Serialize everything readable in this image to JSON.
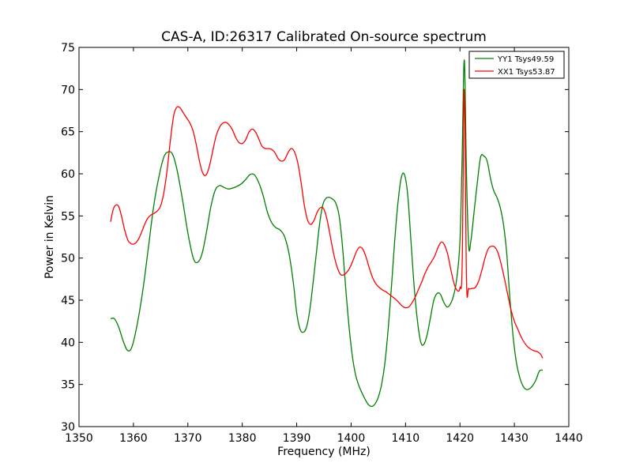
{
  "chart_data": {
    "type": "line",
    "title": "CAS-A, ID:26317 Calibrated On-source spectrum",
    "xlabel": "Frequency (MHz)",
    "ylabel": "Power in Kelvin",
    "xlim": [
      1350,
      1440
    ],
    "ylim": [
      30,
      75
    ],
    "xticks": [
      1350,
      1360,
      1370,
      1380,
      1390,
      1400,
      1410,
      1420,
      1430,
      1440
    ],
    "yticks": [
      30,
      35,
      40,
      45,
      50,
      55,
      60,
      65,
      70,
      75
    ],
    "grid": false,
    "legend_position": "top-right",
    "series": [
      {
        "name": "YY1 Tsys49.59",
        "color": "#008000",
        "x": [
          1355.8,
          1356.5,
          1357.3,
          1358.2,
          1359.0,
          1359.8,
          1360.8,
          1361.8,
          1362.8,
          1363.8,
          1364.8,
          1365.6,
          1366.4,
          1367.2,
          1368.0,
          1369.0,
          1370.0,
          1371.0,
          1371.8,
          1372.6,
          1373.4,
          1374.2,
          1375.0,
          1375.8,
          1376.6,
          1377.4,
          1378.2,
          1379.0,
          1379.8,
          1380.6,
          1381.4,
          1382.2,
          1383.0,
          1383.8,
          1384.6,
          1385.4,
          1386.2,
          1387.0,
          1387.8,
          1388.6,
          1389.4,
          1390.0,
          1390.6,
          1391.2,
          1391.8,
          1392.4,
          1393.0,
          1393.6,
          1394.2,
          1394.8,
          1395.4,
          1396.0,
          1396.6,
          1397.2,
          1397.8,
          1398.4,
          1399.0,
          1399.6,
          1400.2,
          1400.8,
          1401.4,
          1402.0,
          1402.6,
          1403.2,
          1403.8,
          1404.4,
          1405.0,
          1405.6,
          1406.2,
          1406.8,
          1407.4,
          1408.0,
          1408.6,
          1409.2,
          1409.8,
          1410.4,
          1411.0,
          1411.6,
          1412.2,
          1412.8,
          1413.4,
          1414.0,
          1414.6,
          1415.2,
          1415.8,
          1416.4,
          1417.0,
          1417.6,
          1418.2,
          1418.8,
          1419.4,
          1420.0,
          1420.4,
          1420.8,
          1421.2,
          1421.6,
          1422.0,
          1422.6,
          1423.2,
          1423.8,
          1424.4,
          1425.0,
          1425.6,
          1426.2,
          1426.8,
          1427.4,
          1428.0,
          1428.6,
          1429.2,
          1429.8,
          1430.4,
          1431.0,
          1431.6,
          1432.2,
          1432.8,
          1433.4,
          1434.0,
          1434.6,
          1435.2
        ],
        "y": [
          42.8,
          42.8,
          41.8,
          40.0,
          39.0,
          39.6,
          42.5,
          46.5,
          51.5,
          56.5,
          60.0,
          62.0,
          62.6,
          62.3,
          60.5,
          57.0,
          53.0,
          50.0,
          49.5,
          50.5,
          53.0,
          56.0,
          58.0,
          58.6,
          58.4,
          58.2,
          58.3,
          58.5,
          58.8,
          59.3,
          59.9,
          59.9,
          59.0,
          57.5,
          55.5,
          54.2,
          53.6,
          53.3,
          52.5,
          50.5,
          47.0,
          43.5,
          41.6,
          41.2,
          41.8,
          43.8,
          47.0,
          50.5,
          54.0,
          56.3,
          57.1,
          57.2,
          57.0,
          56.5,
          55.0,
          51.5,
          46.5,
          42.0,
          38.5,
          36.2,
          34.9,
          34.0,
          33.2,
          32.6,
          32.4,
          32.7,
          33.5,
          35.0,
          37.5,
          41.5,
          46.5,
          52.0,
          56.5,
          59.5,
          59.9,
          57.5,
          52.0,
          46.5,
          42.5,
          40.0,
          39.8,
          41.0,
          43.0,
          45.0,
          45.8,
          45.7,
          44.8,
          44.2,
          44.5,
          45.5,
          47.5,
          52.0,
          62.0,
          73.5,
          60.0,
          51.5,
          52.0,
          55.5,
          59.0,
          62.0,
          62.1,
          61.5,
          59.5,
          58.0,
          57.2,
          56.0,
          54.0,
          50.5,
          45.0,
          40.5,
          37.5,
          35.8,
          34.8,
          34.4,
          34.5,
          34.9,
          35.6,
          36.6,
          36.7
        ]
      },
      {
        "name": "XX1 Tsys53.87",
        "color": "#ff0000",
        "x": [
          1355.8,
          1356.3,
          1356.8,
          1357.3,
          1357.8,
          1358.4,
          1359.0,
          1359.6,
          1360.2,
          1360.8,
          1361.4,
          1362.0,
          1362.6,
          1363.2,
          1363.8,
          1364.4,
          1365.0,
          1365.6,
          1366.2,
          1366.8,
          1367.4,
          1368.0,
          1368.6,
          1369.2,
          1369.8,
          1370.4,
          1371.0,
          1371.6,
          1372.2,
          1372.8,
          1373.4,
          1374.0,
          1374.6,
          1375.2,
          1375.8,
          1376.4,
          1377.0,
          1377.6,
          1378.2,
          1378.8,
          1379.4,
          1380.0,
          1380.6,
          1381.2,
          1381.8,
          1382.4,
          1383.0,
          1383.6,
          1384.2,
          1384.8,
          1385.4,
          1386.0,
          1386.6,
          1387.2,
          1387.8,
          1388.4,
          1389.0,
          1389.6,
          1390.2,
          1390.8,
          1391.4,
          1392.0,
          1392.6,
          1393.2,
          1393.8,
          1394.4,
          1395.0,
          1395.6,
          1396.2,
          1396.8,
          1397.4,
          1398.0,
          1398.6,
          1399.2,
          1399.8,
          1400.4,
          1401.0,
          1401.6,
          1402.2,
          1402.8,
          1403.4,
          1404.0,
          1404.6,
          1405.2,
          1405.8,
          1406.4,
          1407.0,
          1407.6,
          1408.2,
          1408.8,
          1409.4,
          1410.0,
          1410.6,
          1411.2,
          1411.8,
          1412.4,
          1413.0,
          1413.6,
          1414.2,
          1414.8,
          1415.4,
          1416.0,
          1416.6,
          1417.2,
          1417.8,
          1418.4,
          1419.0,
          1419.6,
          1420.0,
          1420.4,
          1420.8,
          1421.2,
          1421.6,
          1422.2,
          1422.8,
          1423.4,
          1424.0,
          1424.6,
          1425.2,
          1425.8,
          1426.4,
          1427.0,
          1427.6,
          1428.2,
          1428.8,
          1429.4,
          1430.0,
          1430.6,
          1431.2,
          1431.8,
          1432.4,
          1433.0,
          1433.6,
          1434.2,
          1434.8,
          1435.2
        ],
        "y": [
          54.3,
          55.8,
          56.3,
          56.1,
          55.0,
          53.3,
          52.1,
          51.7,
          51.7,
          52.1,
          52.9,
          53.9,
          54.7,
          55.1,
          55.3,
          55.6,
          56.2,
          57.8,
          60.5,
          64.0,
          66.9,
          67.9,
          67.8,
          67.2,
          66.6,
          66.0,
          65.0,
          63.3,
          61.3,
          60.0,
          59.9,
          61.0,
          62.8,
          64.5,
          65.5,
          66.0,
          66.1,
          65.8,
          65.2,
          64.3,
          63.7,
          63.6,
          64.0,
          64.9,
          65.3,
          65.0,
          64.2,
          63.3,
          63.0,
          63.0,
          62.9,
          62.5,
          61.8,
          61.5,
          61.7,
          62.5,
          63.0,
          62.6,
          61.3,
          59.0,
          56.3,
          54.5,
          54.0,
          54.5,
          55.5,
          56.0,
          55.8,
          54.5,
          52.5,
          50.5,
          49.0,
          48.1,
          48.0,
          48.3,
          48.9,
          49.8,
          50.8,
          51.3,
          51.0,
          50.0,
          48.7,
          47.6,
          46.9,
          46.5,
          46.2,
          46.0,
          45.7,
          45.4,
          45.1,
          44.7,
          44.3,
          44.1,
          44.2,
          44.7,
          45.4,
          46.3,
          47.2,
          48.2,
          49.0,
          49.6,
          50.3,
          51.3,
          51.9,
          51.5,
          50.3,
          48.4,
          46.8,
          46.1,
          46.5,
          49.0,
          70.0,
          47.5,
          46.4,
          46.4,
          46.5,
          47.2,
          48.5,
          50.0,
          51.1,
          51.4,
          51.3,
          50.6,
          49.2,
          47.5,
          45.6,
          43.8,
          42.5,
          41.6,
          40.7,
          40.0,
          39.5,
          39.2,
          39.0,
          38.9,
          38.6,
          38.1
        ]
      }
    ]
  }
}
